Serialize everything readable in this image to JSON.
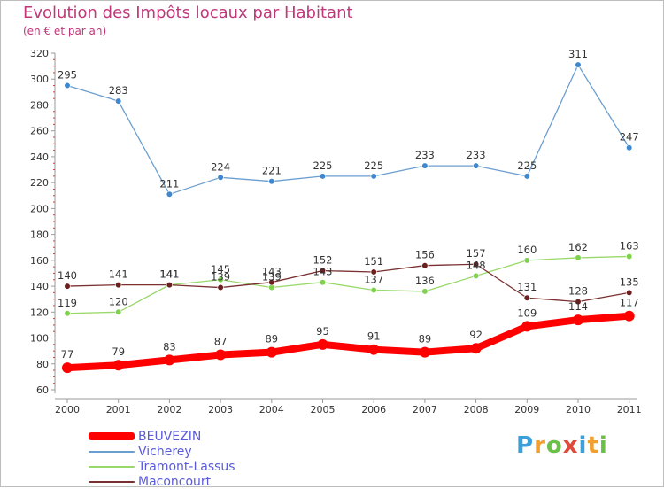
{
  "header": {
    "title": "Evolution des Impôts locaux par Habitant",
    "subtitle": "(en € et par an)"
  },
  "chart_data": {
    "type": "line",
    "title": "Evolution des Impôts locaux par Habitant",
    "subtitle": "(en € et par an)",
    "xlabel": "",
    "ylabel": "",
    "ylim": [
      60,
      320
    ],
    "ytick_step": 20,
    "grid": false,
    "legend_position": "bottom-left",
    "categories": [
      "2000",
      "2001",
      "2002",
      "2003",
      "2004",
      "2005",
      "2006",
      "2007",
      "2008",
      "2009",
      "2010",
      "2011"
    ],
    "series": [
      {
        "name": "BEUVEZIN",
        "color": "#ff0000",
        "point_color": "#ff0000",
        "values": [
          77,
          79,
          83,
          87,
          89,
          95,
          91,
          89,
          92,
          109,
          114,
          117
        ]
      },
      {
        "name": "Vicherey",
        "color": "#6b9ed0",
        "point_color": "#3f87cf",
        "values": [
          295,
          283,
          211,
          224,
          221,
          225,
          225,
          233,
          233,
          225,
          311,
          247
        ]
      },
      {
        "name": "Tramont-Lassus",
        "color": "#99d86a",
        "point_color": "#7fd24d",
        "values": [
          119,
          120,
          141,
          145,
          139,
          143,
          137,
          136,
          148,
          160,
          162,
          163
        ]
      },
      {
        "name": "Maconcourt",
        "color": "#7a3030",
        "point_color": "#6b1f1f",
        "values": [
          140,
          141,
          141,
          139,
          143,
          152,
          151,
          156,
          157,
          131,
          128,
          135
        ]
      }
    ]
  },
  "logo": {
    "letters": [
      "P",
      "r",
      "o",
      "x",
      "i",
      "t",
      "i"
    ],
    "colors": [
      "#3aa0dc",
      "#f0a030",
      "#6cc04a",
      "#e04a3a",
      "#3aa0dc",
      "#f0a030",
      "#6cc04a"
    ]
  }
}
